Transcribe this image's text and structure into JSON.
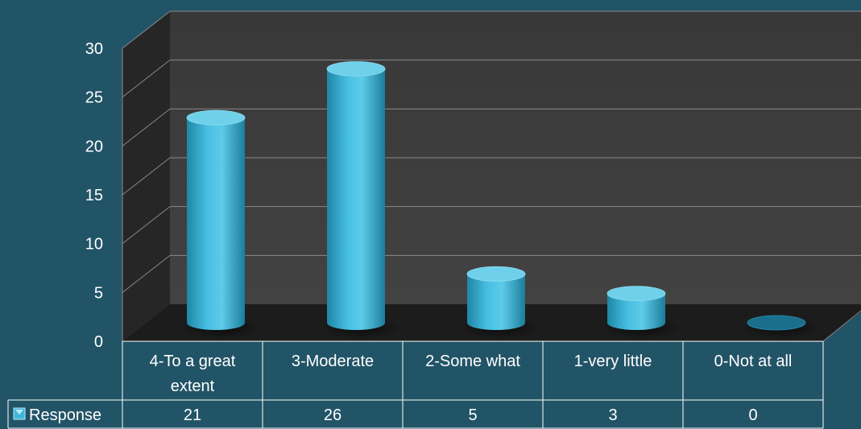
{
  "colors": {
    "background": "#225467",
    "back_wall": "#3a3a3a",
    "side_wall": "#262626",
    "floor": "#1c1c1c",
    "gridline": "#8a8a8a",
    "bar_front": "#3fb6d9",
    "bar_top": "#6fd0ea",
    "table_line": "#ffffff",
    "text": "#ffffff"
  },
  "chart_data": {
    "type": "bar",
    "style": "3d-cylinder",
    "categories": [
      "4-To a great extent",
      "3-Moderate",
      "2-Some what",
      "1-very little",
      "0-Not at all"
    ],
    "category_lines": [
      [
        "4-To a great",
        "extent"
      ],
      [
        "3-Moderate"
      ],
      [
        "2-Some what"
      ],
      [
        "1-very little"
      ],
      [
        "0-Not at all"
      ]
    ],
    "series": [
      {
        "name": "Response",
        "values": [
          21,
          26,
          5,
          3,
          0
        ]
      }
    ],
    "yticks": [
      0,
      5,
      10,
      15,
      20,
      25,
      30
    ],
    "ylim": [
      0,
      30
    ],
    "title": "",
    "xlabel": "",
    "ylabel": "",
    "grid": true,
    "legend": "data-table",
    "data_table": true
  }
}
